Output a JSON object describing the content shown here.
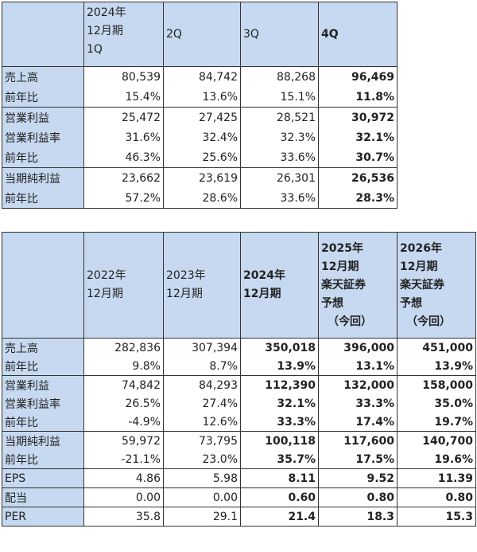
{
  "tables": [
    {
      "header": [
        [
          "2024年",
          "12月期",
          "1Q"
        ],
        [
          "2Q"
        ],
        [
          "3Q"
        ],
        [
          "4Q"
        ]
      ],
      "rows": [
        [
          "売上高",
          "80,539",
          "84,742",
          "88,268",
          "96,469"
        ],
        [
          "前年比",
          "15.4%",
          "13.6%",
          "15.1%",
          "11.8%"
        ],
        [
          "営業利益",
          "25,472",
          "27,425",
          "28,521",
          "30,972"
        ],
        [
          "営業利益率",
          "31.6%",
          "32.4%",
          "32.3%",
          "32.1%"
        ],
        [
          "前年比",
          "46.3%",
          "25.6%",
          "33.6%",
          "30.7%"
        ],
        [
          "当期純利益",
          "23,662",
          "23,619",
          "26,301",
          "26,536"
        ],
        [
          "前年比",
          "57.2%",
          "28.6%",
          "33.6%",
          "28.3%"
        ]
      ]
    },
    {
      "header": [
        [
          "2022年",
          "12月期"
        ],
        [
          "2023年",
          "12月期"
        ],
        [
          "2024年",
          "12月期"
        ],
        [
          "2025年",
          "12月期",
          "楽天証券",
          "予想",
          "（今回）"
        ],
        [
          "2026年",
          "12月期",
          "楽天証券",
          "予想",
          "（今回）"
        ]
      ],
      "rows": [
        [
          "売上高",
          "282,836",
          "307,394",
          "350,018",
          "396,000",
          "451,000"
        ],
        [
          "前年比",
          "9.8%",
          "8.7%",
          "13.9%",
          "13.1%",
          "13.9%"
        ],
        [
          "営業利益",
          "74,842",
          "84,293",
          "112,390",
          "132,000",
          "158,000"
        ],
        [
          "営業利益率",
          "26.5%",
          "27.4%",
          "32.1%",
          "33.3%",
          "35.0%"
        ],
        [
          "前年比",
          "-4.9%",
          "12.6%",
          "33.3%",
          "17.4%",
          "19.7%"
        ],
        [
          "当期純利益",
          "59,972",
          "73,795",
          "100,118",
          "117,600",
          "140,700"
        ],
        [
          "前年比",
          "-21.1%",
          "23.0%",
          "35.7%",
          "17.5%",
          "19.6%"
        ],
        [
          "EPS",
          "4.86",
          "5.98",
          "8.11",
          "9.52",
          "11.39"
        ],
        [
          "配当",
          "0.00",
          "0.00",
          "0.60",
          "0.80",
          "0.80"
        ],
        [
          "PER",
          "35.8",
          "29.1",
          "21.4",
          "18.3",
          "15.3"
        ]
      ]
    }
  ]
}
